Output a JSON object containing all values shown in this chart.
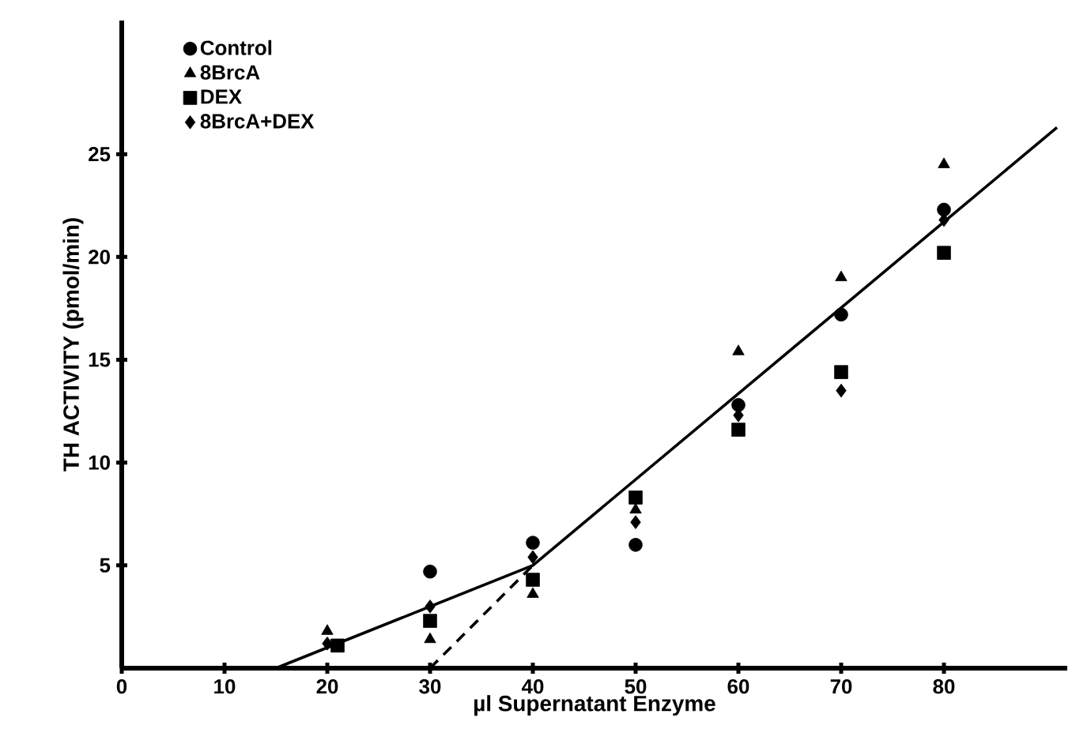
{
  "chart_data": {
    "type": "scatter",
    "xlabel": "µl Supernatant Enzyme",
    "ylabel": "TH ACTIVITY (pmol/min)",
    "xlim": [
      0,
      92
    ],
    "ylim": [
      0,
      31.5
    ],
    "xticks": [
      0,
      10,
      20,
      30,
      40,
      50,
      60,
      70,
      80
    ],
    "yticks": [
      5,
      10,
      15,
      20,
      25
    ],
    "grid": false,
    "legend": "top left",
    "series": [
      {
        "name": "Control",
        "color": "#000000",
        "marker": "circle",
        "x": [
          30,
          40,
          50,
          60,
          70,
          80
        ],
        "values": [
          4.7,
          6.1,
          6.0,
          12.8,
          17.2,
          22.3
        ]
      },
      {
        "name": "8BrcA",
        "color": "#000000",
        "marker": "triangle",
        "x": [
          20,
          30,
          40,
          50,
          60,
          70,
          80
        ],
        "values": [
          1.8,
          1.4,
          3.6,
          7.7,
          15.4,
          19.0,
          24.5
        ]
      },
      {
        "name": "DEX",
        "color": "#000000",
        "marker": "square",
        "x": [
          21,
          30,
          40,
          50,
          60,
          70,
          80
        ],
        "values": [
          1.1,
          2.3,
          4.3,
          8.3,
          11.6,
          14.4,
          20.2
        ]
      },
      {
        "name": "8BrcA+DEX",
        "color": "#000000",
        "marker": "diamond",
        "x": [
          20,
          30,
          40,
          50,
          60,
          70,
          80
        ],
        "values": [
          1.2,
          3.0,
          5.4,
          7.1,
          12.3,
          13.5,
          21.8
        ]
      },
      {
        "type": "line",
        "color": "#000000",
        "marker": "none",
        "line_style": "solid",
        "x": [
          15,
          40,
          91
        ],
        "values": [
          0,
          5,
          26.3
        ]
      },
      {
        "type": "line",
        "color": "#000000",
        "marker": "none",
        "line_style": "dashed",
        "x": [
          30,
          40
        ],
        "values": [
          0,
          5
        ]
      }
    ]
  }
}
